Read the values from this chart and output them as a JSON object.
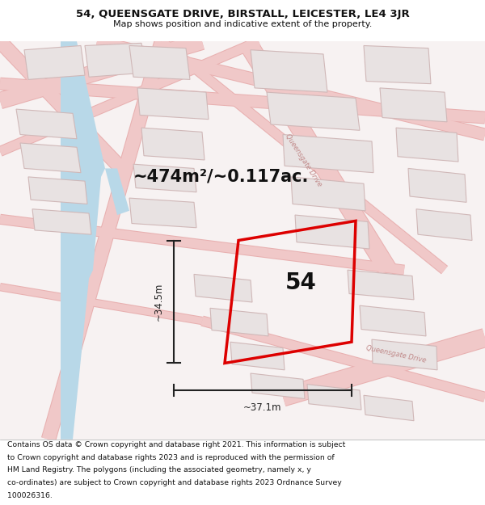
{
  "title_line1": "54, QUEENSGATE DRIVE, BIRSTALL, LEICESTER, LE4 3JR",
  "title_line2": "Map shows position and indicative extent of the property.",
  "footer_lines": [
    "Contains OS data © Crown copyright and database right 2021. This information is subject",
    "to Crown copyright and database rights 2023 and is reproduced with the permission of",
    "HM Land Registry. The polygons (including the associated geometry, namely x, y",
    "co-ordinates) are subject to Crown copyright and database rights 2023 Ordnance Survey",
    "100026316."
  ],
  "area_label": "~474m²/~0.117ac.",
  "plot_number": "54",
  "dim_width": "~37.1m",
  "dim_height": "~34.5m",
  "map_bg": "#f7f2f2",
  "plot_color": "#dd0000",
  "road_color": "#f0c8c8",
  "road_edge_color": "#e8b0b0",
  "building_fill": "#e8e2e2",
  "building_edge": "#d0b8b8",
  "blue_fill": "#b8d8e8",
  "blue_edge": "none",
  "road_label_color": "#c08888",
  "dim_color": "#222222",
  "text_color": "#111111"
}
